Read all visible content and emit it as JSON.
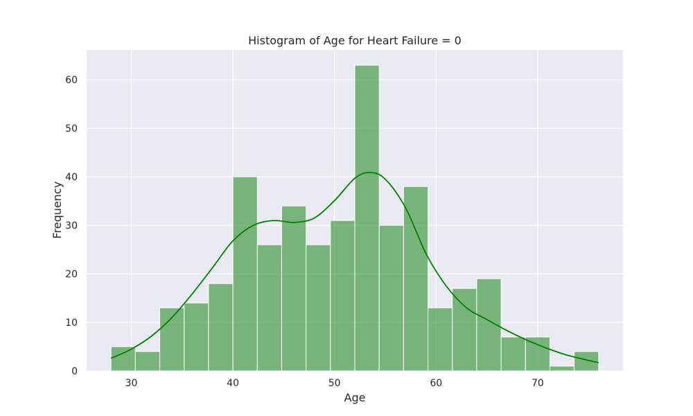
{
  "chart_data": {
    "type": "histogram",
    "title": "Histogram of Age for Heart Failure = 0",
    "xlabel": "Age",
    "ylabel": "Frequency",
    "xlim": [
      25.6,
      78.4
    ],
    "ylim": [
      0,
      66.15
    ],
    "xticks": [
      30,
      40,
      50,
      60,
      70
    ],
    "yticks": [
      0,
      10,
      20,
      30,
      40,
      50,
      60
    ],
    "grid": true,
    "bin_edges": [
      28,
      30.4,
      32.8,
      35.2,
      37.6,
      40,
      42.4,
      44.8,
      47.2,
      49.6,
      52,
      54.4,
      56.8,
      59.2,
      61.6,
      64,
      66.4,
      68.8,
      71.2,
      73.6,
      76
    ],
    "counts": [
      5,
      4,
      13,
      14,
      18,
      40,
      26,
      34,
      26,
      31,
      63,
      30,
      38,
      13,
      17,
      19,
      7,
      7,
      1,
      4
    ],
    "bar_color": "#4e9e4e",
    "kde": {
      "color": "#008000",
      "x": [
        28,
        30,
        32,
        34,
        36,
        38,
        40,
        42,
        44,
        46,
        48,
        50,
        52,
        53.5,
        55,
        57,
        59,
        61,
        63,
        65,
        67,
        69,
        71,
        73,
        76
      ],
      "y": [
        2.6,
        4.5,
        7.2,
        11.0,
        15.9,
        21.3,
        26.8,
        30.0,
        31.0,
        30.6,
        31.5,
        35.1,
        39.7,
        40.9,
        39.5,
        33.6,
        24.2,
        17.5,
        13.0,
        10.6,
        8.3,
        6.3,
        4.6,
        3.2,
        1.7
      ]
    }
  }
}
